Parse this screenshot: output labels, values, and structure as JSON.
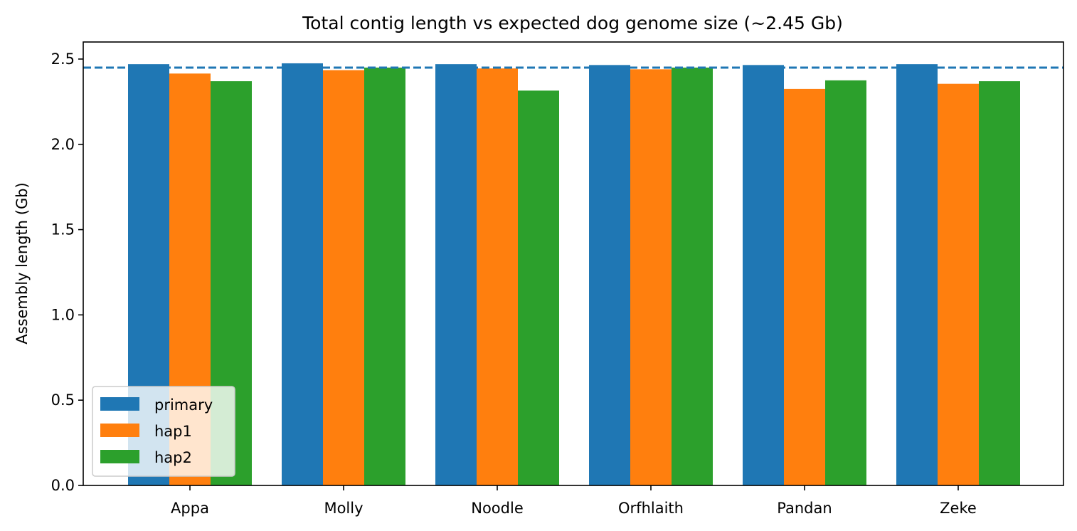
{
  "chart_data": {
    "type": "bar",
    "title": "Total contig length vs expected dog genome size (~2.45 Gb)",
    "xlabel": "",
    "ylabel": "Assembly length (Gb)",
    "categories": [
      "Appa",
      "Molly",
      "Noodle",
      "Orfhlaith",
      "Pandan",
      "Zeke"
    ],
    "series": [
      {
        "name": "primary",
        "color": "#1f77b4",
        "values": [
          2.47,
          2.475,
          2.47,
          2.465,
          2.465,
          2.47
        ]
      },
      {
        "name": "hap1",
        "color": "#ff7f0e",
        "values": [
          2.415,
          2.435,
          2.445,
          2.44,
          2.325,
          2.355
        ]
      },
      {
        "name": "hap2",
        "color": "#2ca02c",
        "values": [
          2.37,
          2.45,
          2.315,
          2.45,
          2.375,
          2.37
        ]
      }
    ],
    "reference_line": {
      "value": 2.45,
      "style": "dashed",
      "color": "#1f77b4"
    },
    "ylim": [
      0,
      2.6
    ],
    "yticks": [
      "0.0",
      "0.5",
      "1.0",
      "1.5",
      "2.0",
      "2.5"
    ],
    "ytick_values": [
      0,
      0.5,
      1.0,
      1.5,
      2.0,
      2.5
    ],
    "grid": false,
    "legend_position": "lower-left"
  }
}
